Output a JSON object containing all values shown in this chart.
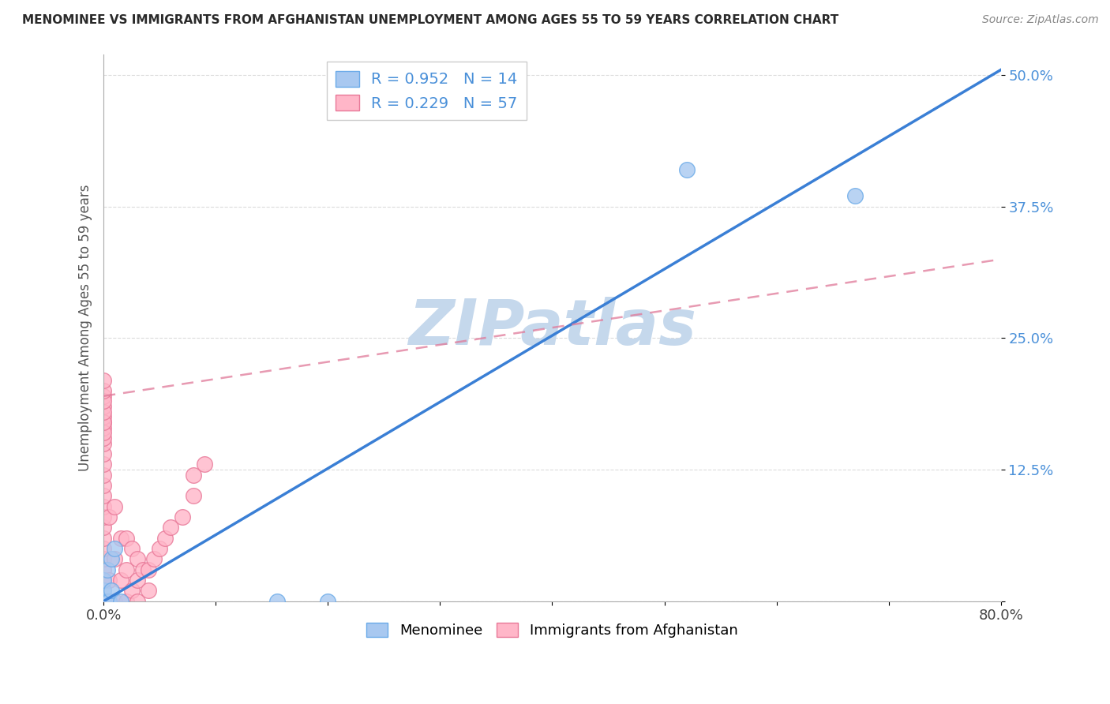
{
  "title": "MENOMINEE VS IMMIGRANTS FROM AFGHANISTAN UNEMPLOYMENT AMONG AGES 55 TO 59 YEARS CORRELATION CHART",
  "source_text": "Source: ZipAtlas.com",
  "watermark": "ZIPatlas",
  "ylabel": "Unemployment Among Ages 55 to 59 years",
  "xlim": [
    0.0,
    0.8
  ],
  "ylim": [
    0.0,
    0.52
  ],
  "xticks": [
    0.0,
    0.1,
    0.2,
    0.3,
    0.4,
    0.5,
    0.6,
    0.7,
    0.8
  ],
  "xticklabels": [
    "0.0%",
    "",
    "",
    "",
    "",
    "",
    "",
    "",
    "80.0%"
  ],
  "ytick_positions": [
    0.0,
    0.125,
    0.25,
    0.375,
    0.5
  ],
  "ytick_labels": [
    "",
    "12.5%",
    "25.0%",
    "37.5%",
    "50.0%"
  ],
  "menominee_x": [
    0.0,
    0.0,
    0.0,
    0.003,
    0.003,
    0.005,
    0.007,
    0.007,
    0.01,
    0.015,
    0.52,
    0.67,
    0.155,
    0.2
  ],
  "menominee_y": [
    0.0,
    0.01,
    0.02,
    0.0,
    0.03,
    0.0,
    0.01,
    0.04,
    0.05,
    0.0,
    0.41,
    0.385,
    0.0,
    0.0
  ],
  "afghanistan_x": [
    0.0,
    0.0,
    0.0,
    0.0,
    0.0,
    0.0,
    0.0,
    0.0,
    0.0,
    0.0,
    0.0,
    0.0,
    0.0,
    0.0,
    0.0,
    0.0,
    0.0,
    0.0,
    0.0,
    0.0,
    0.005,
    0.005,
    0.01,
    0.01,
    0.01,
    0.015,
    0.015,
    0.02,
    0.02,
    0.02,
    0.025,
    0.025,
    0.03,
    0.03,
    0.03,
    0.035,
    0.04,
    0.04,
    0.045,
    0.05,
    0.055,
    0.06,
    0.07,
    0.08,
    0.08,
    0.09,
    0.0,
    0.0,
    0.0,
    0.0,
    0.0,
    0.0,
    0.0,
    0.0,
    0.0,
    0.0,
    0.0
  ],
  "afghanistan_y": [
    0.0,
    0.0,
    0.0,
    0.0,
    0.0,
    0.02,
    0.03,
    0.04,
    0.05,
    0.06,
    0.07,
    0.08,
    0.09,
    0.1,
    0.11,
    0.12,
    0.13,
    0.14,
    0.15,
    0.17,
    0.02,
    0.08,
    0.0,
    0.04,
    0.09,
    0.02,
    0.06,
    0.0,
    0.03,
    0.06,
    0.01,
    0.05,
    0.0,
    0.02,
    0.04,
    0.03,
    0.01,
    0.03,
    0.04,
    0.05,
    0.06,
    0.07,
    0.08,
    0.1,
    0.12,
    0.13,
    0.155,
    0.165,
    0.175,
    0.185,
    0.195,
    0.16,
    0.17,
    0.18,
    0.19,
    0.2,
    0.21
  ],
  "menominee_color": "#A8C8F0",
  "menominee_edge_color": "#6AAAE8",
  "afghanistan_color": "#FFB6C8",
  "afghanistan_edge_color": "#E87898",
  "blue_line_color": "#3A7FD5",
  "pink_line_color": "#E07898",
  "R_menominee": 0.952,
  "N_menominee": 14,
  "R_afghanistan": 0.229,
  "N_afghanistan": 57,
  "grid_color": "#CCCCCC",
  "watermark_color": "#C5D8EC",
  "tick_label_color": "#4A90D9",
  "background_color": "#FFFFFF",
  "blue_line_x0": 0.0,
  "blue_line_y0": 0.0,
  "blue_line_x1": 0.8,
  "blue_line_y1": 0.505,
  "pink_line_x0": 0.0,
  "pink_line_y0": 0.195,
  "pink_line_x1": 0.8,
  "pink_line_y1": 0.325
}
